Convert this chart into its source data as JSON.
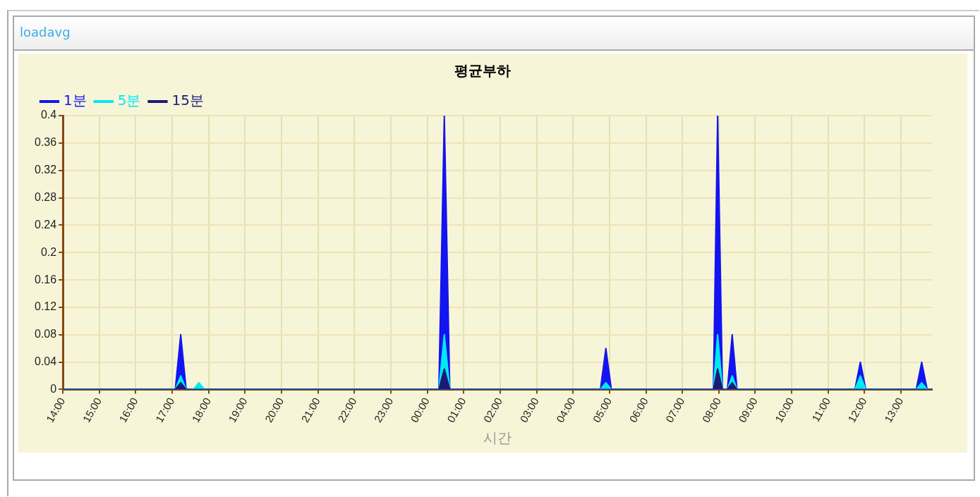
{
  "chart_data": {
    "type": "area",
    "title": "평균부하",
    "xlabel": "시간",
    "annotations": [
      "loadavg"
    ],
    "x": [
      "2000-01-01T14:00",
      "2000-01-01T17:05",
      "2000-01-01T17:14",
      "2000-01-01T17:23",
      "2000-01-01T17:35",
      "2000-01-01T17:44",
      "2000-01-01T17:53",
      "2000-01-02T00:19",
      "2000-01-02T00:28",
      "2000-01-02T00:37",
      "2000-01-02T04:45",
      "2000-01-02T04:54",
      "2000-01-02T05:03",
      "2000-01-02T07:51",
      "2000-01-02T07:58",
      "2000-01-02T08:06",
      "2000-01-02T08:14",
      "2000-01-02T08:22",
      "2000-01-02T08:30",
      "2000-01-02T11:44",
      "2000-01-02T11:53",
      "2000-01-02T12:02",
      "2000-01-02T13:25",
      "2000-01-02T13:34",
      "2000-01-02T13:43",
      "2000-01-02T13:51"
    ],
    "series": [
      {
        "name": "1분",
        "color": "#1414f0",
        "values": [
          0,
          0,
          0.08,
          0,
          0,
          0,
          0,
          0,
          0.4,
          0,
          0,
          0.06,
          0,
          0,
          0.4,
          0,
          0,
          0.08,
          0,
          0,
          0.04,
          0,
          0,
          0.04,
          0,
          0
        ]
      },
      {
        "name": "5분",
        "color": "#00e8f0",
        "values": [
          0,
          0,
          0.02,
          0,
          0,
          0.01,
          0,
          0,
          0.08,
          0,
          0,
          0.01,
          0,
          0,
          0.08,
          0,
          0,
          0.02,
          0,
          0,
          0.02,
          0,
          0,
          0.01,
          0,
          0
        ]
      },
      {
        "name": "15분",
        "color": "#1a1a78",
        "values": [
          0,
          0,
          0.01,
          0,
          0,
          0,
          0,
          0,
          0.03,
          0,
          0,
          0,
          0,
          0,
          0.03,
          0,
          0,
          0.01,
          0,
          0,
          0,
          0,
          0,
          0,
          0,
          0
        ]
      }
    ],
    "xlim": [
      "2000-01-01T14:00",
      "2000-01-02T13:51"
    ],
    "xticks": [
      {
        "value": "2000-01-01T14:00",
        "label": "14:00"
      },
      {
        "value": "2000-01-01T15:00",
        "label": "15:00"
      },
      {
        "value": "2000-01-01T16:00",
        "label": "16:00"
      },
      {
        "value": "2000-01-01T17:00",
        "label": "17:00"
      },
      {
        "value": "2000-01-01T18:00",
        "label": "18:00"
      },
      {
        "value": "2000-01-01T19:00",
        "label": "19:00"
      },
      {
        "value": "2000-01-01T20:00",
        "label": "20:00"
      },
      {
        "value": "2000-01-01T21:00",
        "label": "21:00"
      },
      {
        "value": "2000-01-01T22:00",
        "label": "22:00"
      },
      {
        "value": "2000-01-01T23:00",
        "label": "23:00"
      },
      {
        "value": "2000-01-02T00:00",
        "label": "00:00"
      },
      {
        "value": "2000-01-02T01:00",
        "label": "01:00"
      },
      {
        "value": "2000-01-02T02:00",
        "label": "02:00"
      },
      {
        "value": "2000-01-02T03:00",
        "label": "03:00"
      },
      {
        "value": "2000-01-02T04:00",
        "label": "04:00"
      },
      {
        "value": "2000-01-02T05:00",
        "label": "05:00"
      },
      {
        "value": "2000-01-02T06:00",
        "label": "06:00"
      },
      {
        "value": "2000-01-02T07:00",
        "label": "07:00"
      },
      {
        "value": "2000-01-02T08:00",
        "label": "08:00"
      },
      {
        "value": "2000-01-02T09:00",
        "label": "09:00"
      },
      {
        "value": "2000-01-02T10:00",
        "label": "10:00"
      },
      {
        "value": "2000-01-02T11:00",
        "label": "11:00"
      },
      {
        "value": "2000-01-02T12:00",
        "label": "12:00"
      },
      {
        "value": "2000-01-02T13:00",
        "label": "13:00"
      }
    ],
    "ylim": [
      0,
      0.4
    ],
    "yticks": [
      0,
      0.04,
      0.08,
      0.12,
      0.16,
      0.2,
      0.24,
      0.28,
      0.32,
      0.36,
      0.4
    ],
    "grid": true,
    "legend": "top left",
    "marker": "none",
    "line_style": "solid"
  }
}
